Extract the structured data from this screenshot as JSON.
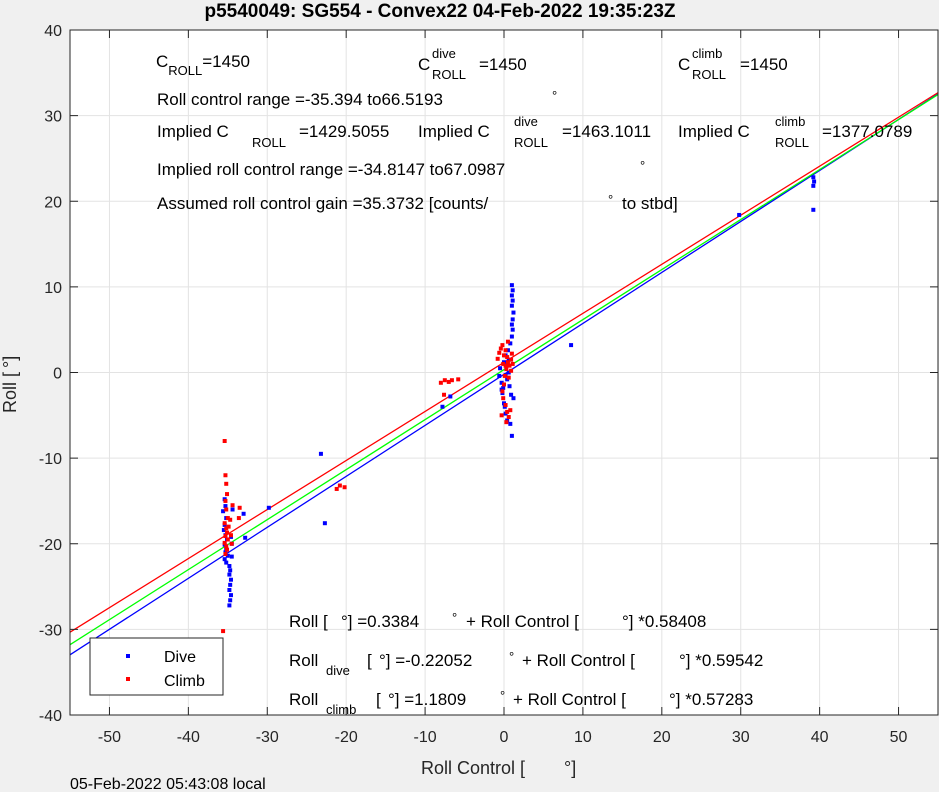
{
  "chart_data": {
    "type": "scatter",
    "title": "p5540049: SG554 - Convex22 04-Feb-2022 19:35:23Z",
    "xlabel": "Roll Control [",
    "xlabel_deg": "°]",
    "ylabel": "Roll [",
    "ylabel_deg": "°]",
    "xlim": [
      -55,
      55
    ],
    "ylim": [
      -40,
      40
    ],
    "xticks": [
      -50,
      -40,
      -30,
      -20,
      -10,
      0,
      10,
      20,
      30,
      40,
      50
    ],
    "yticks": [
      -40,
      -30,
      -20,
      -10,
      0,
      10,
      20,
      30,
      40
    ],
    "grid": true,
    "legend": {
      "position": "bottom-left",
      "entries": [
        "Dive",
        "Climb"
      ]
    },
    "colors": {
      "dive": "#0000ff",
      "climb": "#ff0000",
      "overall": "#00ff00"
    },
    "fit_lines": [
      {
        "series": "overall",
        "intercept": 0.3384,
        "slope": 0.58408
      },
      {
        "series": "dive",
        "intercept": -0.22052,
        "slope": 0.59542
      },
      {
        "series": "climb",
        "intercept": 1.1809,
        "slope": 0.57283
      }
    ],
    "series": [
      {
        "name": "Dive",
        "points": [
          [
            -35.4,
            -14.8
          ],
          [
            -35.3,
            -15.6
          ],
          [
            -35.6,
            -16.2
          ],
          [
            -35.2,
            -17.0
          ],
          [
            -35.4,
            -17.8
          ],
          [
            -35.5,
            -18.4
          ],
          [
            -35.3,
            -19.0
          ],
          [
            -35.1,
            -19.5
          ],
          [
            -35.4,
            -20.1
          ],
          [
            -35.2,
            -20.6
          ],
          [
            -35.3,
            -21.0
          ],
          [
            -35.0,
            -21.4
          ],
          [
            -35.4,
            -21.8
          ],
          [
            -35.2,
            -22.2
          ],
          [
            -34.8,
            -22.6
          ],
          [
            -34.7,
            -23.1
          ],
          [
            -34.8,
            -23.6
          ],
          [
            -34.6,
            -24.2
          ],
          [
            -34.7,
            -24.8
          ],
          [
            -34.8,
            -25.4
          ],
          [
            -34.6,
            -26.0
          ],
          [
            -34.7,
            -26.6
          ],
          [
            -34.8,
            -27.2
          ],
          [
            -34.5,
            -20.0
          ],
          [
            -34.6,
            -19.2
          ],
          [
            -34.5,
            -21.5
          ],
          [
            -34.4,
            -16.0
          ],
          [
            -33.0,
            -16.5
          ],
          [
            -32.8,
            -19.3
          ],
          [
            -29.8,
            -15.8
          ],
          [
            -23.2,
            -9.5
          ],
          [
            -22.7,
            -17.6
          ],
          [
            -7.8,
            -4.0
          ],
          [
            -6.8,
            -2.8
          ],
          [
            -0.5,
            0.5
          ],
          [
            -0.3,
            -1.2
          ],
          [
            -0.2,
            -2.4
          ],
          [
            0.0,
            -3.6
          ],
          [
            0.2,
            -4.8
          ],
          [
            0.4,
            -5.6
          ],
          [
            0.1,
            -4.0
          ],
          [
            -0.3,
            -2.0
          ],
          [
            0.0,
            1.2
          ],
          [
            0.2,
            2.0
          ],
          [
            0.5,
            2.6
          ],
          [
            0.8,
            3.4
          ],
          [
            1.0,
            4.2
          ],
          [
            1.1,
            5.0
          ],
          [
            1.0,
            5.6
          ],
          [
            1.1,
            6.2
          ],
          [
            1.2,
            7.0
          ],
          [
            1.0,
            7.8
          ],
          [
            1.1,
            8.4
          ],
          [
            1.0,
            9.0
          ],
          [
            1.1,
            9.6
          ],
          [
            1.0,
            10.2
          ],
          [
            1.0,
            -7.4
          ],
          [
            0.8,
            -6.0
          ],
          [
            0.6,
            0.0
          ],
          [
            0.4,
            -0.8
          ],
          [
            0.7,
            -1.6
          ],
          [
            0.9,
            -2.6
          ],
          [
            1.2,
            -3.0
          ],
          [
            -0.6,
            -0.4
          ],
          [
            0.3,
            0.9
          ],
          [
            -0.1,
            -1.8
          ],
          [
            0.6,
            1.5
          ],
          [
            0.2,
            -0.3
          ],
          [
            8.5,
            3.2
          ],
          [
            29.8,
            18.4
          ],
          [
            39.2,
            19.0
          ],
          [
            39.2,
            21.8
          ],
          [
            39.3,
            22.3
          ],
          [
            39.2,
            22.8
          ]
        ]
      },
      {
        "name": "Climb",
        "points": [
          [
            -35.6,
            -30.2
          ],
          [
            -35.4,
            -8.0
          ],
          [
            -35.3,
            -12.0
          ],
          [
            -35.2,
            -13.0
          ],
          [
            -35.1,
            -14.2
          ],
          [
            -35.3,
            -15.0
          ],
          [
            -35.2,
            -16.0
          ],
          [
            -35.0,
            -17.0
          ],
          [
            -35.4,
            -17.6
          ],
          [
            -35.2,
            -18.2
          ],
          [
            -35.1,
            -18.7
          ],
          [
            -35.3,
            -19.1
          ],
          [
            -35.0,
            -19.5
          ],
          [
            -35.4,
            -19.9
          ],
          [
            -35.2,
            -20.3
          ],
          [
            -35.1,
            -20.7
          ],
          [
            -35.3,
            -21.2
          ],
          [
            -34.9,
            -18.0
          ],
          [
            -34.7,
            -17.2
          ],
          [
            -34.6,
            -19.0
          ],
          [
            -34.5,
            -20.0
          ],
          [
            -34.4,
            -15.5
          ],
          [
            -33.5,
            -15.8
          ],
          [
            -33.6,
            -17.0
          ],
          [
            -21.2,
            -13.6
          ],
          [
            -20.8,
            -13.2
          ],
          [
            -20.2,
            -13.4
          ],
          [
            -8.0,
            -1.2
          ],
          [
            -7.5,
            -0.9
          ],
          [
            -7.0,
            -1.1
          ],
          [
            -6.6,
            -0.9
          ],
          [
            -5.8,
            -0.8
          ],
          [
            -7.6,
            -2.6
          ],
          [
            -0.8,
            1.6
          ],
          [
            -0.6,
            2.3
          ],
          [
            -0.4,
            2.8
          ],
          [
            -0.2,
            3.2
          ],
          [
            0.0,
            2.0
          ],
          [
            0.2,
            2.6
          ],
          [
            0.4,
            1.8
          ],
          [
            0.5,
            1.2
          ],
          [
            0.7,
            0.8
          ],
          [
            0.9,
            1.5
          ],
          [
            1.0,
            2.2
          ],
          [
            0.3,
            0.4
          ],
          [
            0.1,
            -0.4
          ],
          [
            0.0,
            -1.4
          ],
          [
            -0.2,
            -2.2
          ],
          [
            -0.1,
            -3.0
          ],
          [
            0.2,
            -3.8
          ],
          [
            0.4,
            -4.6
          ],
          [
            0.6,
            -5.2
          ],
          [
            0.8,
            -4.4
          ],
          [
            0.3,
            -5.8
          ],
          [
            -0.3,
            -5.0
          ],
          [
            0.5,
            3.6
          ],
          [
            0.2,
            0.8
          ],
          [
            -0.1,
            1.0
          ],
          [
            0.6,
            -0.6
          ],
          [
            0.9,
            0.2
          ],
          [
            1.1,
            1.0
          ]
        ]
      }
    ],
    "annotations": {
      "c_roll": {
        "pre": "C",
        "sub": "ROLL",
        "post": "=1450"
      },
      "c_roll_dive": {
        "pre": "C",
        "sup": "dive",
        "sub": "ROLL",
        "post": "=1450"
      },
      "c_roll_climb": {
        "pre": "C",
        "sup": "climb",
        "sub": "ROLL",
        "post": "=1450"
      },
      "range_line": "Roll control range =-35.394 to66.5193",
      "range_deg": "°",
      "implied_c_roll": {
        "pre": "Implied C",
        "sub": "ROLL",
        "post": "=1429.5055"
      },
      "implied_c_roll_dive": {
        "pre": "Implied C",
        "sup": "dive",
        "sub": "ROLL",
        "post": "=1463.1011"
      },
      "implied_c_roll_climb": {
        "pre": "Implied C",
        "sup": "climb",
        "sub": "ROLL",
        "post": "=1377.0789"
      },
      "implied_range_line": "Implied roll control range =-34.8147 to67.0987",
      "implied_range_deg": "°",
      "gain_line": "Assumed roll control gain =35.3732 [counts/",
      "gain_deg": "°",
      "gain_tail": "to stbd]",
      "eq_all": {
        "a": "Roll [",
        "b": "°] =0.3384",
        "c": "°",
        "d": "+ Roll Control [",
        "e": "°] *0.58408"
      },
      "eq_dive": {
        "a": "Roll",
        "sub": "dive",
        "b": "[",
        "c": "°] =-0.22052",
        "d": "°",
        "e": "+ Roll Control [",
        "f": "°] *0.59542"
      },
      "eq_climb": {
        "a": "Roll",
        "sub": "climb",
        "b": "[",
        "c": "°] =1.1809",
        "d": "°",
        "e": "+ Roll Control [",
        "f": "°] *0.57283"
      }
    }
  },
  "footer": "05-Feb-2022 05:43:08 local"
}
